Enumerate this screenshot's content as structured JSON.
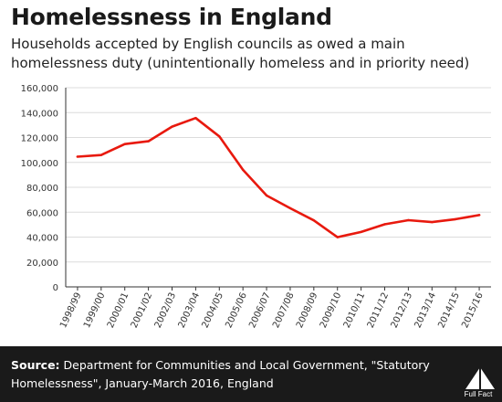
{
  "header": {
    "title": "Homelessness in England",
    "subtitle": "Households accepted by English councils as owed a main homelessness duty (unintentionally homeless and in priority need)"
  },
  "footer": {
    "source_label": "Source:",
    "source_text": "Department for Communities and Local Government, \"Statutory Homelessness\", January-March 2016, England",
    "logo_text": "Full Fact"
  },
  "colors": {
    "line": "#e8190e",
    "grid": "#dcdcdc",
    "footer_bg": "#1a1a1a"
  },
  "chart_data": {
    "type": "line",
    "title": "Homelessness in England",
    "subtitle": "Households accepted by English councils as owed a main homelessness duty (unintentionally homeless and in priority need)",
    "xlabel": "",
    "ylabel": "",
    "categories": [
      "1998/99",
      "1999/00",
      "2000/01",
      "2001/02",
      "2002/03",
      "2003/04",
      "2004/05",
      "2005/06",
      "2006/07",
      "2007/08",
      "2008/09",
      "2009/10",
      "2010/11",
      "2011/12",
      "2012/13",
      "2013/14",
      "2014/15",
      "2015/16"
    ],
    "series": [
      {
        "values": [
          104600,
          105900,
          114700,
          117000,
          128700,
          135600,
          120900,
          94000,
          73400,
          63200,
          53400,
          39900,
          44100,
          50300,
          53600,
          52000,
          54400,
          57700
        ]
      }
    ],
    "ylim": [
      0,
      160000
    ],
    "yticks": [
      0,
      20000,
      40000,
      60000,
      80000,
      100000,
      120000,
      140000,
      160000
    ],
    "yticklabels": [
      "0",
      "20,000",
      "40,000",
      "60,000",
      "80,000",
      "100,000",
      "120,000",
      "140,000",
      "160,000"
    ],
    "grid": "horizontal",
    "legend": "none"
  }
}
